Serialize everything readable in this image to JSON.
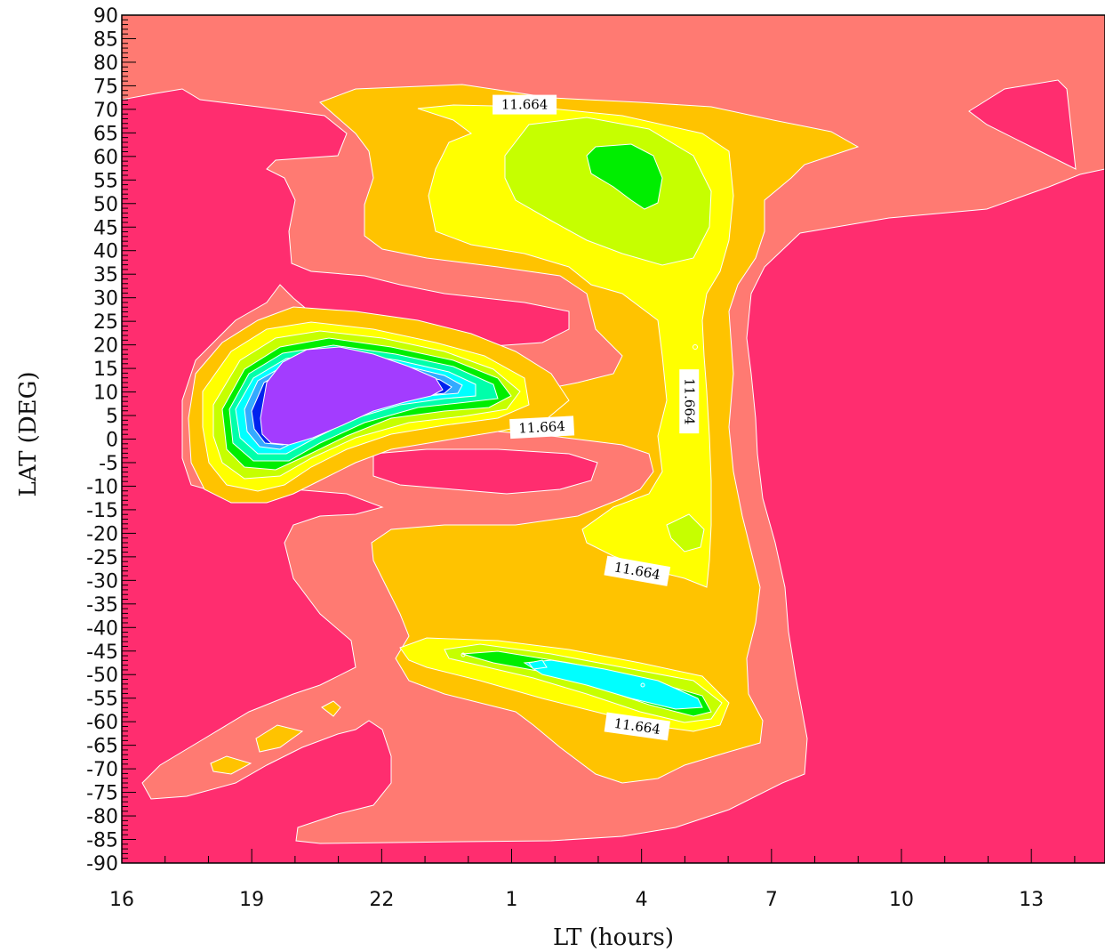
{
  "chart_data": {
    "type": "heatmap",
    "title": "",
    "xlabel": "LT (hours)",
    "ylabel": "LAT (DEG)",
    "x_ticks": [
      "16",
      "19",
      "22",
      "1",
      "4",
      "7",
      "10",
      "13"
    ],
    "x_tick_positions": [
      16,
      19,
      22,
      25,
      28,
      31,
      34,
      37
    ],
    "xlim": [
      16,
      38.7
    ],
    "y_ticks": [
      90,
      85,
      80,
      75,
      70,
      65,
      60,
      55,
      50,
      45,
      40,
      35,
      30,
      25,
      20,
      15,
      10,
      5,
      0,
      -5,
      -10,
      -15,
      -20,
      -25,
      -30,
      -35,
      -40,
      -45,
      -50,
      -55,
      -60,
      -65,
      -70,
      -75,
      -80,
      -85,
      -90
    ],
    "ylim": [
      -90,
      90
    ],
    "grid": false,
    "colors": {
      "background_level": "#ff2d6f",
      "level_1": "#ff7a72",
      "level_2": "#ffc300",
      "level_3": "#ffff00",
      "level_4": "#c6ff00",
      "level_5": "#00ee00",
      "level_6": "#00ffaa",
      "level_7": "#00ffff",
      "level_8": "#33aaff",
      "level_9": "#0022ee",
      "level_10": "#a33cff"
    },
    "contour_labels": [
      {
        "text": "11.664",
        "x": 25.3,
        "y": 71,
        "angle": 0
      },
      {
        "text": "11.664",
        "x": 25.7,
        "y": 2.5,
        "angle": -3
      },
      {
        "text": "11.664",
        "x": 29.1,
        "y": 8,
        "angle": 90
      },
      {
        "text": "11.664",
        "x": 27.9,
        "y": -28,
        "angle": 10
      },
      {
        "text": "11.664",
        "x": 27.9,
        "y": -61,
        "angle": 8
      }
    ]
  }
}
